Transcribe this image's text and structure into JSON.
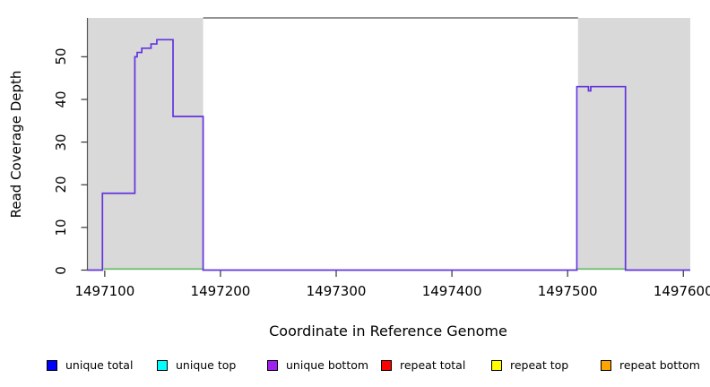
{
  "figure": {
    "background": "#FFFFFF",
    "plot_background": "#FFFFFF",
    "highlight_color": "#D9D9D9",
    "box_color": "#555555",
    "tick_color": "#333333"
  },
  "axes": {
    "x": {
      "title": "Coordinate in Reference Genome",
      "tick_labels": [
        "1497100",
        "1497200",
        "1497300",
        "1497400",
        "1497500",
        "1497600"
      ]
    },
    "y": {
      "title": "Read Coverage Depth",
      "tick_labels": [
        "0",
        "10",
        "20",
        "30",
        "40",
        "50"
      ]
    }
  },
  "legend": {
    "items": [
      {
        "label": "unique total",
        "color": "#0000FF"
      },
      {
        "label": "unique top",
        "color": "#00FFFF"
      },
      {
        "label": "unique bottom",
        "color": "#A020F0"
      },
      {
        "label": "repeat total",
        "color": "#FF0000"
      },
      {
        "label": "repeat top",
        "color": "#FFFF00"
      },
      {
        "label": "repeat bottom",
        "color": "#FFA500"
      }
    ]
  },
  "chart_data": {
    "type": "line",
    "subtype": "step-coverage",
    "title": "",
    "xlabel": "Coordinate in Reference Genome",
    "ylabel": "Read Coverage Depth",
    "xlim": [
      1497085,
      1497606
    ],
    "ylim": [
      0,
      59.1
    ],
    "x_ticks": [
      1497100,
      1497200,
      1497300,
      1497400,
      1497500,
      1497600
    ],
    "y_ticks": [
      0,
      10,
      20,
      30,
      40,
      50
    ],
    "grid": false,
    "legend_position": "bottom",
    "highlight_regions": [
      {
        "x0": 1497085,
        "x1": 1497185,
        "color": "#D9D9D9"
      },
      {
        "x0": 1497509,
        "x1": 1497606,
        "color": "#D9D9D9"
      }
    ],
    "series": [
      {
        "name": "unique bottom",
        "color": "#6233DF",
        "style": "step",
        "points": [
          [
            1497085,
            0
          ],
          [
            1497098,
            18
          ],
          [
            1497126,
            50
          ],
          [
            1497128,
            51
          ],
          [
            1497132,
            52
          ],
          [
            1497140,
            53
          ],
          [
            1497145,
            54
          ],
          [
            1497159,
            36
          ],
          [
            1497185,
            0
          ],
          [
            1497508,
            43
          ],
          [
            1497518,
            42
          ],
          [
            1497520,
            43
          ],
          [
            1497550,
            0
          ],
          [
            1497606,
            0
          ]
        ]
      },
      {
        "name": "unlabeled-green-baseline",
        "color": "#55BB55",
        "style": "segments-at-zero",
        "segments": [
          [
            1497099,
            1497185
          ],
          [
            1497508,
            1497550
          ]
        ]
      }
    ]
  }
}
